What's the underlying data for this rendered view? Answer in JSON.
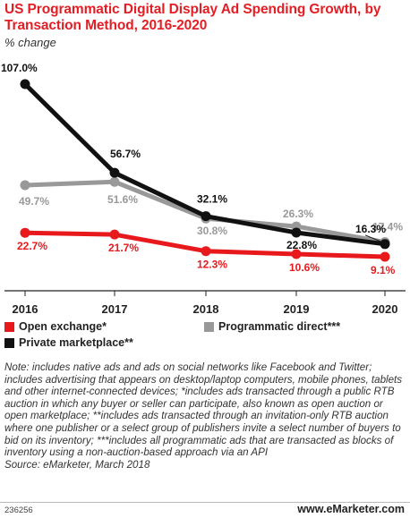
{
  "header": {
    "title": "US Programmatic Digital Display Ad Spending Growth, by Transaction Method, 2016-2020",
    "subtitle": "% change"
  },
  "chart_data": {
    "type": "line",
    "title": "US Programmatic Digital Display Ad Spending Growth, by Transaction Method, 2016-2020",
    "subtitle": "% change",
    "x": [
      "2016",
      "2017",
      "2018",
      "2019",
      "2020"
    ],
    "series": [
      {
        "name": "Open exchange*",
        "color": "#e8191d",
        "values": [
          22.7,
          21.7,
          12.3,
          10.6,
          9.1
        ],
        "labels": [
          "22.7%",
          "21.7%",
          "12.3%",
          "10.6%",
          "9.1%"
        ]
      },
      {
        "name": "Programmatic direct***",
        "color": "#999999",
        "values": [
          49.7,
          51.6,
          30.8,
          26.3,
          17.4
        ],
        "labels": [
          "49.7%",
          "51.6%",
          "30.8%",
          "26.3%",
          "17.4%"
        ]
      },
      {
        "name": "Private marketplace**",
        "color": "#111111",
        "values": [
          107.0,
          56.7,
          32.1,
          22.8,
          16.3
        ],
        "labels": [
          "107.0%",
          "56.7%",
          "32.1%",
          "22.8%",
          "16.3%"
        ]
      }
    ],
    "legend": "bottom",
    "grid": false
  },
  "note": "Note: includes native ads and ads on social networks like Facebook and Twitter; includes advertising that appears on desktop/laptop computers, mobile phones, tablets and other internet-connected devices; *includes ads transacted through a public RTB auction in which any buyer or seller can participate, also known as open auction or open marketplace; **includes ads transacted through an invitation-only RTB auction where one publisher or a select group of publishers invite a select number of buyers to bid on its inventory; ***includes all programmatic ads that are transacted as blocks of inventory using a non-auction-based approach via an API",
  "source": "Source: eMarketer, March 2018",
  "footer": {
    "chart_id": "236256",
    "brand": "www.eMarketer.com"
  }
}
